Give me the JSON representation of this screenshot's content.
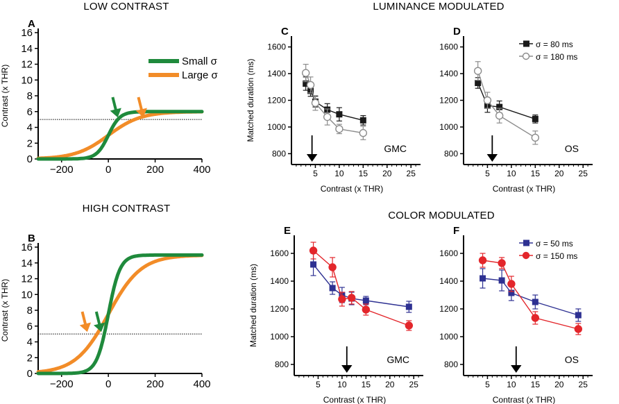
{
  "sections": {
    "low_contrast": "LOW CONTRAST",
    "high_contrast": "HIGH CONTRAST",
    "luminance": "LUMINANCE MODULATED",
    "color": "COLOR  MODULATED"
  },
  "colors": {
    "green": "#1f8a3c",
    "orange": "#f28c28",
    "black_series": "#1a1a1a",
    "gray_series": "#8c8c8c",
    "blue": "#2e3192",
    "red": "#e3262b"
  },
  "chart_data": [
    {
      "id": "A",
      "panel": "A",
      "type": "line",
      "title": "LOW CONTRAST",
      "xlabel": "",
      "ylabel": "Contrast (x THR)",
      "xlim": [
        -300,
        400
      ],
      "ylim": [
        0,
        16
      ],
      "xticks": [
        "−200",
        "0",
        "200",
        "400"
      ],
      "yticks": [
        "0",
        "2",
        "4",
        "6",
        "8",
        "10",
        "12",
        "14",
        "16"
      ],
      "threshold": 5,
      "series": [
        {
          "name": "Small σ",
          "color": "green",
          "curve": {
            "baseline": 0,
            "amplitude": 6,
            "center": 0,
            "width": 25
          }
        },
        {
          "name": "Large σ",
          "color": "orange",
          "curve": {
            "baseline": 0,
            "amplitude": 6,
            "center": 0,
            "width": 70
          }
        }
      ],
      "arrows": [
        {
          "series": "Small σ",
          "x": 40,
          "y": 5
        },
        {
          "series": "Large σ",
          "x": 150,
          "y": 5
        }
      ],
      "legend": [
        "Small σ",
        "Large σ"
      ]
    },
    {
      "id": "B",
      "panel": "B",
      "type": "line",
      "title": "HIGH CONTRAST",
      "xlabel": "",
      "ylabel": "Contrast (x THR)",
      "xlim": [
        -300,
        400
      ],
      "ylim": [
        0,
        16
      ],
      "xticks": [
        "−200",
        "0",
        "200",
        "400"
      ],
      "yticks": [
        "0",
        "2",
        "4",
        "6",
        "8",
        "10",
        "12",
        "14",
        "16"
      ],
      "threshold": 5,
      "series": [
        {
          "name": "Small σ",
          "color": "green",
          "curve": {
            "baseline": 0,
            "amplitude": 15,
            "center": 0,
            "width": 25
          }
        },
        {
          "name": "Large σ",
          "color": "orange",
          "curve": {
            "baseline": 0,
            "amplitude": 15,
            "center": 0,
            "width": 70
          }
        }
      ],
      "arrows": [
        {
          "series": "Small σ",
          "x": -30,
          "y": 5
        },
        {
          "series": "Large σ",
          "x": -90,
          "y": 5
        }
      ]
    },
    {
      "id": "C",
      "panel": "C",
      "type": "line",
      "title": "LUMINANCE MODULATED",
      "xlabel": "Contrast (x THR)",
      "ylabel": "Matched  duration (ms)",
      "xlim": [
        0,
        27
      ],
      "ylim": [
        750,
        1650
      ],
      "xticks": [
        "5",
        "10",
        "15",
        "20",
        "25"
      ],
      "yticks": [
        "800",
        "1000",
        "1200",
        "1400",
        "1600"
      ],
      "condition": "GMC",
      "arrow_x": 4.3,
      "series": [
        {
          "name": "σ = 80 ms",
          "color": "black_series",
          "marker": "square",
          "fill": true,
          "x": [
            3,
            4,
            5,
            7.5,
            10,
            15
          ],
          "y": [
            1325,
            1270,
            1190,
            1130,
            1095,
            1050
          ],
          "err": [
            50,
            40,
            40,
            45,
            50,
            35
          ]
        },
        {
          "name": "σ = 180 ms",
          "color": "gray_series",
          "marker": "circle",
          "fill": false,
          "x": [
            3,
            4,
            5,
            7.5,
            10,
            15
          ],
          "y": [
            1405,
            1315,
            1180,
            1075,
            985,
            955
          ],
          "err": [
            65,
            60,
            55,
            60,
            35,
            50
          ]
        }
      ]
    },
    {
      "id": "D",
      "panel": "D",
      "type": "line",
      "title": "LUMINANCE MODULATED",
      "xlabel": "Contrast (x THR)",
      "ylabel": "",
      "xlim": [
        0,
        27
      ],
      "ylim": [
        750,
        1650
      ],
      "xticks": [
        "5",
        "10",
        "15",
        "20",
        "25"
      ],
      "yticks": [
        "800",
        "1000",
        "1200",
        "1400",
        "1600"
      ],
      "condition": "OS",
      "arrow_x": 6,
      "legend": [
        "σ = 80 ms",
        "σ = 180 ms"
      ],
      "series": [
        {
          "name": "σ = 80 ms",
          "color": "black_series",
          "marker": "square",
          "fill": true,
          "x": [
            3,
            5,
            7.5,
            15
          ],
          "y": [
            1330,
            1160,
            1150,
            1060
          ],
          "err": [
            40,
            50,
            45,
            30
          ]
        },
        {
          "name": "σ = 180 ms",
          "color": "gray_series",
          "marker": "circle",
          "fill": false,
          "x": [
            3,
            5,
            7.5,
            15
          ],
          "y": [
            1420,
            1200,
            1085,
            920
          ],
          "err": [
            70,
            60,
            55,
            50
          ]
        }
      ]
    },
    {
      "id": "E",
      "panel": "E",
      "type": "line",
      "title": "COLOR  MODULATED",
      "xlabel": "Contrast (x THR)",
      "ylabel": "Matched  duration (ms)",
      "xlim": [
        0,
        27
      ],
      "ylim": [
        750,
        1700
      ],
      "xticks": [
        "5",
        "10",
        "15",
        "20",
        "25"
      ],
      "yticks": [
        "800",
        "1000",
        "1200",
        "1400",
        "1600"
      ],
      "condition": "GMC",
      "arrow_x": 11,
      "series": [
        {
          "name": "σ = 50 ms",
          "color": "blue",
          "marker": "square",
          "fill": true,
          "x": [
            4,
            8,
            10,
            12,
            15,
            24
          ],
          "y": [
            1520,
            1350,
            1300,
            1275,
            1260,
            1215
          ],
          "err": [
            80,
            45,
            55,
            45,
            30,
            40
          ]
        },
        {
          "name": "σ = 150 ms",
          "color": "red",
          "marker": "circle",
          "fill": true,
          "x": [
            4,
            8,
            10,
            12,
            15,
            24
          ],
          "y": [
            1620,
            1500,
            1270,
            1280,
            1195,
            1080
          ],
          "err": [
            60,
            70,
            50,
            45,
            40,
            35
          ]
        }
      ]
    },
    {
      "id": "F",
      "panel": "F",
      "type": "line",
      "title": "COLOR  MODULATED",
      "xlabel": "Contrast (x THR)",
      "ylabel": "",
      "xlim": [
        0,
        27
      ],
      "ylim": [
        750,
        1700
      ],
      "xticks": [
        "5",
        "10",
        "15",
        "20",
        "25"
      ],
      "yticks": [
        "800",
        "1000",
        "1200",
        "1400",
        "1600"
      ],
      "condition": "OS",
      "arrow_x": 11,
      "legend": [
        "σ = 50 ms",
        "σ = 150 ms"
      ],
      "series": [
        {
          "name": "σ = 50 ms",
          "color": "blue",
          "marker": "square",
          "fill": true,
          "x": [
            4,
            8,
            10,
            15,
            24
          ],
          "y": [
            1420,
            1405,
            1315,
            1250,
            1155
          ],
          "err": [
            70,
            75,
            55,
            50,
            45
          ]
        },
        {
          "name": "σ = 150 ms",
          "color": "red",
          "marker": "circle",
          "fill": true,
          "x": [
            4,
            8,
            10,
            15,
            24
          ],
          "y": [
            1550,
            1530,
            1380,
            1135,
            1055
          ],
          "err": [
            50,
            40,
            55,
            45,
            40
          ]
        }
      ]
    }
  ]
}
